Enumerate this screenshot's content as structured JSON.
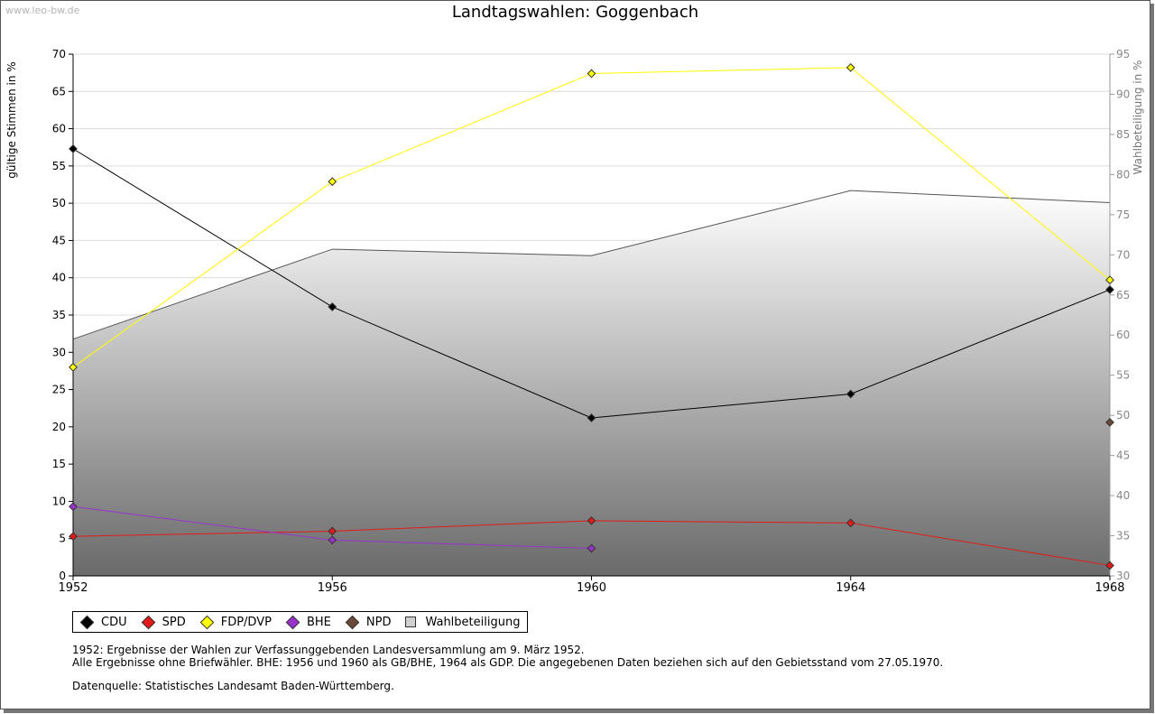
{
  "header": {
    "watermark": "www.leo-bw.de",
    "title": "Landtagswahlen: Goggenbach"
  },
  "chart_data": {
    "type": "line",
    "title": "Landtagswahlen: Goggenbach",
    "xlabel": "",
    "ylabel": "gültige Stimmen in %",
    "y2label": "Wahlbeteiligung in %",
    "categories": [
      "1952",
      "1956",
      "1960",
      "1964",
      "1968"
    ],
    "ylim": [
      0,
      70
    ],
    "yticks": [
      0,
      5,
      10,
      15,
      20,
      25,
      30,
      35,
      40,
      45,
      50,
      55,
      60,
      65,
      70
    ],
    "y2lim": [
      30,
      95
    ],
    "y2ticks": [
      30,
      35,
      40,
      45,
      50,
      55,
      60,
      65,
      70,
      75,
      80,
      85,
      90,
      95
    ],
    "grid": true,
    "series": [
      {
        "name": "CDU",
        "color": "#000000",
        "values": [
          57.3,
          36.1,
          21.2,
          24.4,
          38.4
        ]
      },
      {
        "name": "SPD",
        "color": "#e41a1a",
        "values": [
          5.3,
          6.0,
          7.4,
          7.1,
          1.4
        ]
      },
      {
        "name": "FDP/DVP",
        "color": "#ffff00",
        "values": [
          28.0,
          52.9,
          67.4,
          68.2,
          39.7
        ]
      },
      {
        "name": "BHE",
        "color": "#9933cc",
        "values": [
          9.3,
          4.8,
          3.7,
          null,
          null
        ]
      },
      {
        "name": "NPD",
        "color": "#6b4a3a",
        "values": [
          null,
          null,
          null,
          null,
          20.6
        ]
      }
    ],
    "area": {
      "name": "Wahlbeteiligung",
      "axis": "right",
      "values": [
        59.5,
        70.7,
        69.9,
        78.0,
        76.5
      ]
    },
    "legend_position": "bottom-left"
  },
  "legend": [
    {
      "label": "CDU",
      "color": "#000000",
      "kind": "marker"
    },
    {
      "label": "SPD",
      "color": "#e41a1a",
      "kind": "marker"
    },
    {
      "label": "FDP/DVP",
      "color": "#ffff00",
      "kind": "marker"
    },
    {
      "label": "BHE",
      "color": "#9933cc",
      "kind": "marker"
    },
    {
      "label": "NPD",
      "color": "#6b4a3a",
      "kind": "marker"
    },
    {
      "label": "Wahlbeteiligung",
      "color": "#d0d0d0",
      "kind": "box"
    }
  ],
  "notes": {
    "line1": "1952: Ergebnisse der Wahlen zur Verfassunggebenden Landesversammlung am 9. März 1952.",
    "line2": "Alle Ergebnisse ohne Briefwähler. BHE: 1956 und 1960 als GB/BHE, 1964 als GDP. Die angegebenen Daten beziehen sich auf den Gebietsstand vom 27.05.1970.",
    "source": "Datenquelle: Statistisches Landesamt Baden-Württemberg."
  }
}
